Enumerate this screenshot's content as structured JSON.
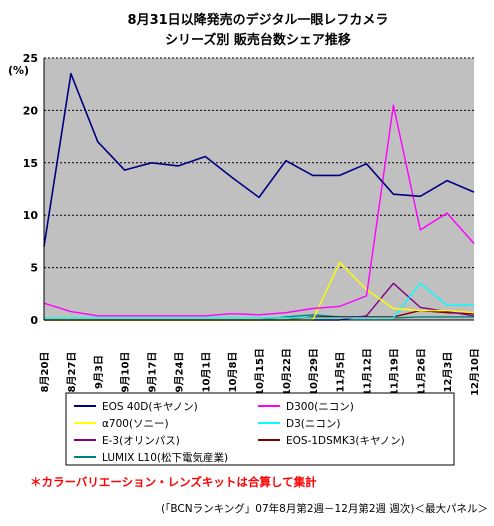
{
  "chart_data": {
    "type": "line",
    "title": "8月31日以降発売のデジタル一眼レフカメラ",
    "subtitle": "シリーズ別 販売台数シェア推移",
    "ylabel": "(%)",
    "ylim": [
      0,
      25
    ],
    "yticks": [
      0,
      5,
      10,
      15,
      20,
      25
    ],
    "grid": true,
    "legend_position": "bottom",
    "x": [
      "8月20日",
      "8月27日",
      "9月3日",
      "9月10日",
      "9月17日",
      "9月24日",
      "10月1日",
      "10月8日",
      "10月15日",
      "10月22日",
      "10月29日",
      "11月5日",
      "11月12日",
      "11月19日",
      "11月26日",
      "12月3日",
      "12月10日"
    ],
    "series": [
      {
        "name": "EOS 40D(キヤノン)",
        "color": "#000080",
        "width": 1.6,
        "values": [
          7.0,
          23.5,
          17.0,
          14.3,
          15.0,
          14.7,
          15.6,
          13.6,
          11.7,
          15.2,
          13.8,
          13.8,
          14.9,
          12.0,
          11.8,
          13.3,
          12.2
        ]
      },
      {
        "name": "D300(ニコン)",
        "color": "#ff00ff",
        "width": 1.4,
        "values": [
          1.6,
          0.8,
          0.4,
          0.4,
          0.4,
          0.4,
          0.4,
          0.6,
          0.5,
          0.7,
          1.1,
          1.3,
          2.3,
          20.5,
          8.6,
          10.2,
          7.3
        ]
      },
      {
        "name": "α700(ソニー)",
        "color": "#ffff00",
        "width": 1.4,
        "values": [
          0,
          0,
          0,
          0,
          0,
          0,
          0,
          0,
          0,
          0,
          0,
          5.5,
          2.9,
          1.1,
          0.9,
          0.9,
          0.7
        ]
      },
      {
        "name": "D3(ニコン)",
        "color": "#00ffff",
        "width": 1.4,
        "values": [
          0.2,
          0.2,
          0.2,
          0.2,
          0.2,
          0.2,
          0.2,
          0.2,
          0.2,
          0.2,
          0.2,
          0.2,
          0.2,
          0.2,
          3.5,
          1.4,
          1.4
        ]
      },
      {
        "name": "E-3(オリンパス)",
        "color": "#800080",
        "width": 1.4,
        "values": [
          0,
          0,
          0,
          0,
          0,
          0,
          0,
          0,
          0,
          0,
          0,
          0,
          0.4,
          3.5,
          1.2,
          0.8,
          0.4
        ]
      },
      {
        "name": "EOS-1DSMK3(キヤノン)",
        "color": "#800000",
        "width": 1.4,
        "values": [
          0,
          0,
          0,
          0,
          0,
          0,
          0,
          0,
          0,
          0,
          0.3,
          0.3,
          0.3,
          0.3,
          0.9,
          0.7,
          0.6
        ]
      },
      {
        "name": "LUMIX L10(松下電気産業)",
        "color": "#008080",
        "width": 1.4,
        "values": [
          0,
          0,
          0,
          0,
          0,
          0,
          0,
          0,
          0,
          0.3,
          0.5,
          0.3,
          0.3,
          0.2,
          0.3,
          0.3,
          0.3
        ]
      }
    ],
    "colors": {
      "plot_background": "#c0c0c0",
      "grid": "#000000",
      "note": "#ff0000"
    }
  },
  "note": "＊カラーバリエーション・レンズキットは合算して集計",
  "source": "(「BCNランキング」07年8月第2週－12月第2週 週次)＜最大パネル＞"
}
